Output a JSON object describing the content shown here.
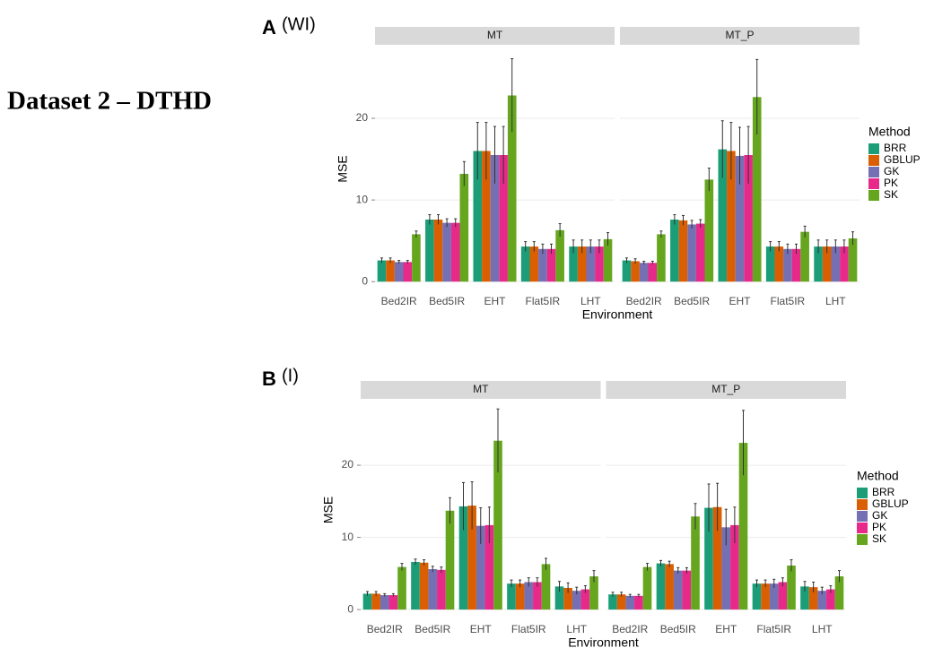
{
  "heading": "Dataset 2 – DTHD",
  "chart_data": [
    {
      "type": "bar",
      "panel": "A",
      "panel_note": "(WI)",
      "x_label": "Environment",
      "y_label": "MSE",
      "legend_title": "Method",
      "categories": [
        "Bed2IR",
        "Bed5IR",
        "EHT",
        "Flat5IR",
        "LHT"
      ],
      "ylim": [
        -1.4,
        29
      ],
      "yticks": [
        0,
        10,
        20
      ],
      "grid": true,
      "facets": [
        {
          "name": "MT",
          "series": [
            {
              "name": "BRR",
              "color": "#1b9e77",
              "values": [
                2.6,
                7.6,
                16.0,
                4.3,
                4.3
              ],
              "errors": [
                0.3,
                0.6,
                3.5,
                0.6,
                0.8
              ]
            },
            {
              "name": "GBLUP",
              "color": "#d95f02",
              "values": [
                2.6,
                7.6,
                16.0,
                4.3,
                4.3
              ],
              "errors": [
                0.3,
                0.6,
                3.5,
                0.6,
                0.8
              ]
            },
            {
              "name": "GK",
              "color": "#7570b3",
              "values": [
                2.4,
                7.2,
                15.5,
                4.0,
                4.3
              ],
              "errors": [
                0.2,
                0.5,
                3.5,
                0.6,
                0.8
              ]
            },
            {
              "name": "PK",
              "color": "#e7298a",
              "values": [
                2.4,
                7.2,
                15.5,
                4.0,
                4.3
              ],
              "errors": [
                0.2,
                0.5,
                3.5,
                0.6,
                0.8
              ]
            },
            {
              "name": "SK",
              "color": "#66a61e",
              "values": [
                5.8,
                13.2,
                22.8,
                6.3,
                5.2
              ],
              "errors": [
                0.4,
                1.5,
                4.5,
                0.8,
                0.8
              ]
            }
          ]
        },
        {
          "name": "MT_P",
          "series": [
            {
              "name": "BRR",
              "color": "#1b9e77",
              "values": [
                2.6,
                7.6,
                16.2,
                4.3,
                4.3
              ],
              "errors": [
                0.3,
                0.6,
                3.5,
                0.6,
                0.8
              ]
            },
            {
              "name": "GBLUP",
              "color": "#d95f02",
              "values": [
                2.5,
                7.5,
                16.0,
                4.3,
                4.3
              ],
              "errors": [
                0.3,
                0.6,
                3.5,
                0.6,
                0.8
              ]
            },
            {
              "name": "GK",
              "color": "#7570b3",
              "values": [
                2.3,
                7.0,
                15.4,
                4.0,
                4.3
              ],
              "errors": [
                0.2,
                0.5,
                3.5,
                0.6,
                0.8
              ]
            },
            {
              "name": "PK",
              "color": "#e7298a",
              "values": [
                2.3,
                7.1,
                15.5,
                4.0,
                4.3
              ],
              "errors": [
                0.2,
                0.5,
                3.5,
                0.6,
                0.8
              ]
            },
            {
              "name": "SK",
              "color": "#66a61e",
              "values": [
                5.8,
                12.5,
                22.6,
                6.1,
                5.3
              ],
              "errors": [
                0.4,
                1.4,
                4.6,
                0.7,
                0.8
              ]
            }
          ]
        }
      ]
    },
    {
      "type": "bar",
      "panel": "B",
      "panel_note": "(I)",
      "x_label": "Environment",
      "y_label": "MSE",
      "legend_title": "Method",
      "categories": [
        "Bed2IR",
        "Bed5IR",
        "EHT",
        "Flat5IR",
        "LHT"
      ],
      "ylim": [
        -1.6,
        29.2
      ],
      "yticks": [
        0,
        10,
        20
      ],
      "grid": true,
      "facets": [
        {
          "name": "MT",
          "series": [
            {
              "name": "BRR",
              "color": "#1b9e77",
              "values": [
                2.2,
                6.6,
                14.3,
                3.6,
                3.2
              ],
              "errors": [
                0.3,
                0.4,
                3.3,
                0.5,
                0.7
              ]
            },
            {
              "name": "GBLUP",
              "color": "#d95f02",
              "values": [
                2.2,
                6.5,
                14.4,
                3.6,
                3.0
              ],
              "errors": [
                0.3,
                0.4,
                3.3,
                0.5,
                0.7
              ]
            },
            {
              "name": "GK",
              "color": "#7570b3",
              "values": [
                2.0,
                5.6,
                11.6,
                3.8,
                2.6
              ],
              "errors": [
                0.2,
                0.4,
                2.5,
                0.6,
                0.5
              ]
            },
            {
              "name": "PK",
              "color": "#e7298a",
              "values": [
                2.0,
                5.5,
                11.7,
                3.8,
                2.8
              ],
              "errors": [
                0.2,
                0.4,
                2.5,
                0.6,
                0.5
              ]
            },
            {
              "name": "SK",
              "color": "#66a61e",
              "values": [
                5.9,
                13.7,
                23.4,
                6.3,
                4.6
              ],
              "errors": [
                0.5,
                1.8,
                4.4,
                0.8,
                0.8
              ]
            }
          ]
        },
        {
          "name": "MT_P",
          "series": [
            {
              "name": "BRR",
              "color": "#1b9e77",
              "values": [
                2.1,
                6.4,
                14.1,
                3.6,
                3.2
              ],
              "errors": [
                0.3,
                0.4,
                3.3,
                0.5,
                0.7
              ]
            },
            {
              "name": "GBLUP",
              "color": "#d95f02",
              "values": [
                2.1,
                6.3,
                14.2,
                3.6,
                3.1
              ],
              "errors": [
                0.3,
                0.4,
                3.3,
                0.5,
                0.7
              ]
            },
            {
              "name": "GK",
              "color": "#7570b3",
              "values": [
                1.9,
                5.4,
                11.4,
                3.6,
                2.6
              ],
              "errors": [
                0.2,
                0.4,
                2.5,
                0.6,
                0.5
              ]
            },
            {
              "name": "PK",
              "color": "#e7298a",
              "values": [
                1.9,
                5.4,
                11.7,
                3.8,
                2.8
              ],
              "errors": [
                0.2,
                0.4,
                2.5,
                0.6,
                0.5
              ]
            },
            {
              "name": "SK",
              "color": "#66a61e",
              "values": [
                5.9,
                12.9,
                23.1,
                6.1,
                4.6
              ],
              "errors": [
                0.5,
                1.8,
                4.5,
                0.8,
                0.8
              ]
            }
          ]
        }
      ]
    }
  ]
}
